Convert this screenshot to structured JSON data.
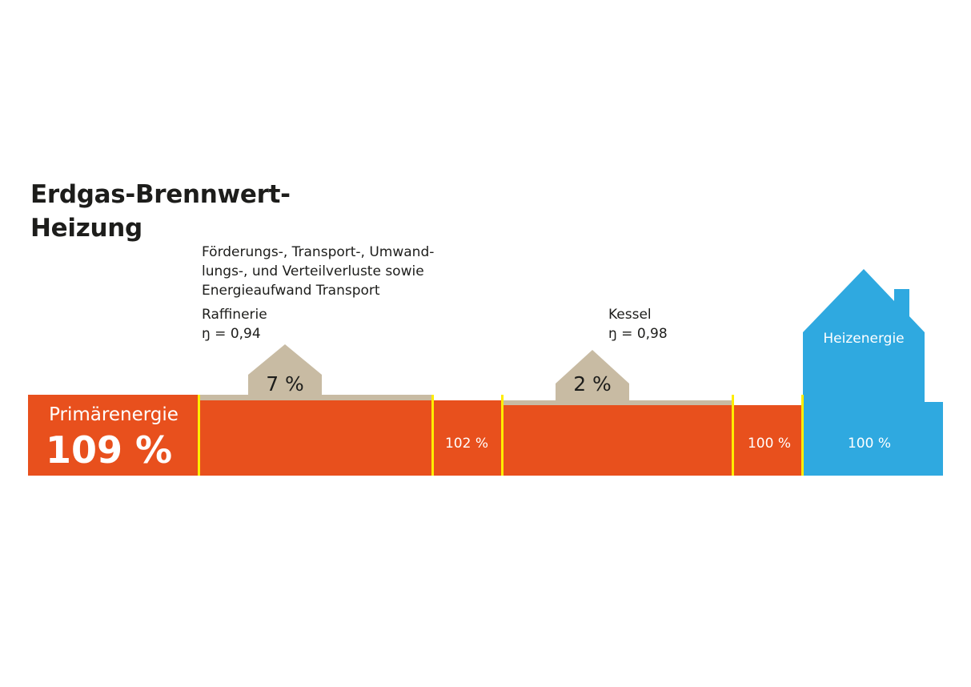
{
  "title": {
    "line1": "Erdgas-Brennwert-",
    "line2": "Heizung"
  },
  "loss_description": {
    "line1": "Förderungs-, Transport-, Umwand-",
    "line2": "lungs-, und Verteilverluste sowie",
    "line3": "Energieaufwand Transport"
  },
  "stages": {
    "raffinerie": {
      "name": "Raffinerie",
      "efficiency": "ŋ = 0,94",
      "loss": "7 %"
    },
    "kessel": {
      "name": "Kessel",
      "efficiency": "ŋ = 0,98",
      "loss": "2 %"
    }
  },
  "flow": {
    "primary_label": "Primärenergie",
    "primary_value": "109 %",
    "after_raffinerie": "102 %",
    "after_kessel": "100 %",
    "heating_value": "100 %",
    "heating_label": "Heizenergie"
  },
  "colors": {
    "flow": "#e8501d",
    "loss": "#c8bba3",
    "house": "#2fa9e0",
    "divider": "#ffed00"
  }
}
